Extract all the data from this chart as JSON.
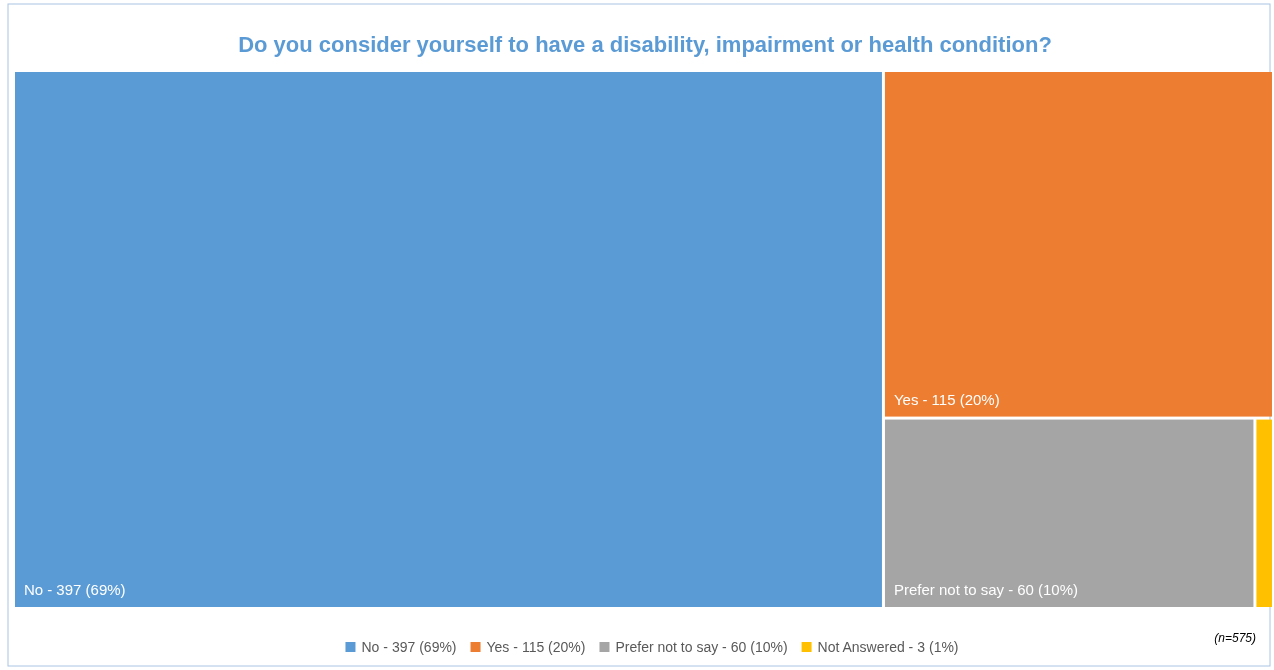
{
  "chart_data": {
    "type": "other",
    "title": "Do you consider yourself to have a disability, impairment or health condition?",
    "categories": [
      "No -",
      "Yes -",
      "Prefer not to say -",
      "Not Answered -"
    ],
    "values": [
      397,
      115,
      60,
      3
    ],
    "value_labels": [
      "397 (69%)",
      "115 (20%)",
      "60 (10%)",
      "3 (1%)"
    ],
    "colors": [
      "#5b9bd5",
      "#ed7d31",
      "#a5a5a5",
      "#ffc000"
    ],
    "annotations": [
      "(n=575)"
    ]
  }
}
